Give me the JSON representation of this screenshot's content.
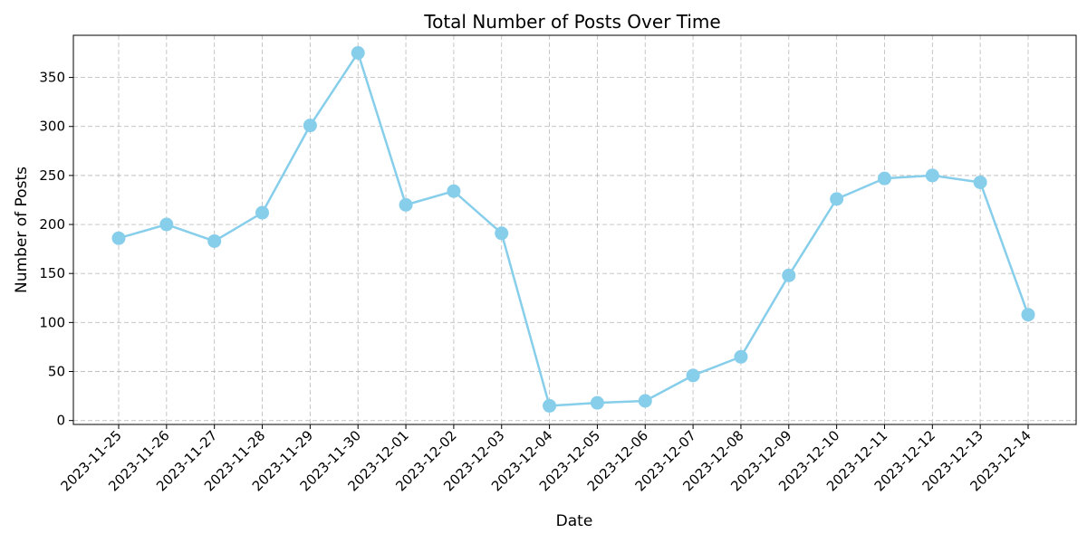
{
  "chart_data": {
    "type": "line",
    "title": "Total Number of Posts Over Time",
    "xlabel": "Date",
    "ylabel": "Number of Posts",
    "x": [
      "2023-11-25",
      "2023-11-26",
      "2023-11-27",
      "2023-11-28",
      "2023-11-29",
      "2023-11-30",
      "2023-12-01",
      "2023-12-02",
      "2023-12-03",
      "2023-12-04",
      "2023-12-05",
      "2023-12-06",
      "2023-12-07",
      "2023-12-08",
      "2023-12-09",
      "2023-12-10",
      "2023-12-11",
      "2023-12-12",
      "2023-12-13",
      "2023-12-14"
    ],
    "series": [
      {
        "values": [
          186,
          200,
          183,
          212,
          301,
          375,
          220,
          234,
          191,
          15,
          18,
          20,
          46,
          65,
          148,
          226,
          247,
          250,
          243,
          108
        ],
        "color": "#87ceeb"
      }
    ],
    "yticks": [
      0,
      50,
      100,
      150,
      200,
      250,
      300,
      350
    ],
    "ylim": [
      -4,
      393
    ],
    "grid": true,
    "marker": "circle"
  }
}
